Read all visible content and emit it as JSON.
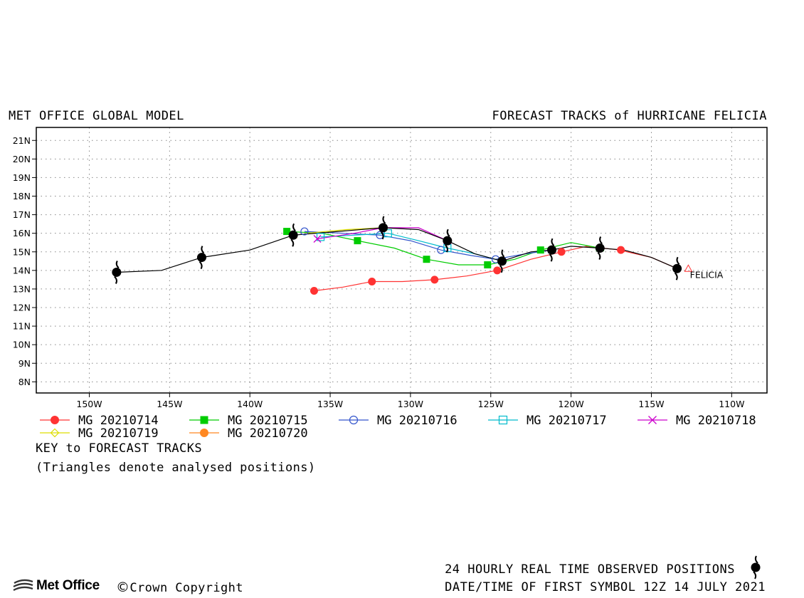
{
  "header": {
    "left": "MET OFFICE GLOBAL MODEL",
    "right": "FORECAST TRACKS of HURRICANE FELICIA"
  },
  "key": {
    "title": "KEY to FORECAST TRACKS",
    "note": "(Triangles denote analysed positions)"
  },
  "footer": {
    "observed": "24 HOURLY REAL TIME OBSERVED POSITIONS",
    "datetime": "DATE/TIME OF FIRST SYMBOL 12Z 14 JULY 2021",
    "logo": "Met Office",
    "copyright_symbol": "©",
    "copyright": "Crown Copyright"
  },
  "chart_data": {
    "type": "scatter",
    "title": "FORECAST TRACKS of HURRICANE FELICIA",
    "xlabel": "",
    "ylabel": "",
    "xlim": [
      -153.3,
      -107.8
    ],
    "ylim": [
      7.4,
      21.7
    ],
    "x_ticks": [
      -150,
      -145,
      -140,
      -135,
      -130,
      -125,
      -120,
      -115,
      -110
    ],
    "x_tick_labels": [
      "150W",
      "145W",
      "140W",
      "135W",
      "130W",
      "125W",
      "120W",
      "115W",
      "110W"
    ],
    "y_ticks": [
      8,
      9,
      10,
      11,
      12,
      13,
      14,
      15,
      16,
      17,
      18,
      19,
      20,
      21
    ],
    "y_tick_labels": [
      "8N",
      "9N",
      "10N",
      "11N",
      "12N",
      "13N",
      "14N",
      "15N",
      "16N",
      "17N",
      "18N",
      "19N",
      "20N",
      "21N"
    ],
    "grid": true,
    "storm_label": "FELICIA",
    "observed": {
      "color": "#000000",
      "points": [
        [
          -113.4,
          14.1
        ],
        [
          -118.2,
          15.2
        ],
        [
          -121.2,
          15.1
        ],
        [
          -124.3,
          14.5
        ],
        [
          -127.7,
          15.6
        ],
        [
          -131.7,
          16.3
        ],
        [
          -137.3,
          15.9
        ],
        [
          -143.0,
          14.7
        ],
        [
          -148.3,
          13.9
        ]
      ],
      "extra_line": [
        [
          -113.4,
          14.1
        ],
        [
          -115.0,
          14.7
        ],
        [
          -116.7,
          15.1
        ],
        [
          -118.2,
          15.2
        ],
        [
          -120.0,
          15.3
        ],
        [
          -121.2,
          15.1
        ],
        [
          -122.5,
          15.0
        ],
        [
          -124.3,
          14.5
        ],
        [
          -126.0,
          14.9
        ],
        [
          -127.7,
          15.6
        ],
        [
          -129.5,
          16.2
        ],
        [
          -131.7,
          16.3
        ],
        [
          -134.5,
          16.1
        ],
        [
          -137.3,
          15.9
        ],
        [
          -140.0,
          15.1
        ],
        [
          -143.0,
          14.7
        ],
        [
          -145.5,
          14.0
        ],
        [
          -148.3,
          13.9
        ]
      ]
    },
    "series": [
      {
        "name": "MG 20210714",
        "color": "#ff3333",
        "marker": "circle-filled",
        "analysed": [
          -112.7,
          14.1
        ],
        "track": [
          [
            -113.4,
            14.1
          ],
          [
            -115.0,
            14.7
          ],
          [
            -117.0,
            15.1
          ],
          [
            -119.0,
            15.3
          ],
          [
            -120.6,
            15.0
          ],
          [
            -122.5,
            14.6
          ],
          [
            -124.6,
            14.0
          ],
          [
            -126.5,
            13.7
          ],
          [
            -128.5,
            13.5
          ],
          [
            -130.5,
            13.4
          ],
          [
            -132.4,
            13.4
          ],
          [
            -134.2,
            13.1
          ],
          [
            -136.0,
            12.9
          ]
        ],
        "markers": [
          [
            -116.9,
            15.1
          ],
          [
            -120.6,
            15.0
          ],
          [
            -124.6,
            14.0
          ],
          [
            -128.5,
            13.5
          ],
          [
            -132.4,
            13.4
          ],
          [
            -136.0,
            12.9
          ]
        ]
      },
      {
        "name": "MG 20210715",
        "color": "#00cc00",
        "marker": "square-filled",
        "analysed": [
          -118.2,
          15.2
        ],
        "track": [
          [
            -118.2,
            15.2
          ],
          [
            -120.0,
            15.5
          ],
          [
            -121.9,
            15.1
          ],
          [
            -123.5,
            14.6
          ],
          [
            -125.2,
            14.3
          ],
          [
            -127.0,
            14.3
          ],
          [
            -129.0,
            14.6
          ],
          [
            -131.0,
            15.2
          ],
          [
            -133.3,
            15.6
          ],
          [
            -135.5,
            16.0
          ],
          [
            -137.7,
            16.1
          ]
        ],
        "markers": [
          [
            -121.9,
            15.1
          ],
          [
            -125.2,
            14.3
          ],
          [
            -129.0,
            14.6
          ],
          [
            -133.3,
            15.6
          ],
          [
            -137.7,
            16.1
          ]
        ]
      },
      {
        "name": "MG 20210716",
        "color": "#3355cc",
        "marker": "circle-open",
        "analysed": [
          -121.2,
          15.1
        ],
        "track": [
          [
            -121.2,
            15.1
          ],
          [
            -122.8,
            14.9
          ],
          [
            -124.7,
            14.6
          ],
          [
            -126.2,
            14.8
          ],
          [
            -128.1,
            15.1
          ],
          [
            -130.0,
            15.6
          ],
          [
            -131.9,
            15.9
          ],
          [
            -134.2,
            16.0
          ],
          [
            -136.6,
            16.1
          ]
        ],
        "markers": [
          [
            -124.7,
            14.6
          ],
          [
            -128.1,
            15.1
          ],
          [
            -131.9,
            15.9
          ],
          [
            -136.6,
            16.1
          ]
        ]
      },
      {
        "name": "MG 20210717",
        "color": "#00bbcc",
        "marker": "square-open",
        "analysed": [
          -124.3,
          14.5
        ],
        "track": [
          [
            -124.3,
            14.5
          ],
          [
            -126.0,
            14.9
          ],
          [
            -127.7,
            15.2
          ],
          [
            -129.5,
            15.6
          ],
          [
            -131.4,
            16.0
          ],
          [
            -133.5,
            15.9
          ],
          [
            -135.6,
            15.8
          ]
        ],
        "markers": [
          [
            -127.7,
            15.2
          ],
          [
            -131.4,
            16.0
          ],
          [
            -135.6,
            15.8
          ]
        ]
      },
      {
        "name": "MG 20210718",
        "color": "#cc00cc",
        "marker": "x",
        "analysed": [
          -127.7,
          15.6
        ],
        "track": [
          [
            -127.7,
            15.6
          ],
          [
            -129.5,
            16.3
          ],
          [
            -131.7,
            16.3
          ],
          [
            -133.5,
            16.0
          ],
          [
            -135.8,
            15.7
          ]
        ],
        "markers": [
          [
            -135.8,
            15.7
          ]
        ]
      },
      {
        "name": "MG 20210719",
        "color": "#dddd00",
        "marker": "diamond-open",
        "analysed": [
          -131.7,
          16.3
        ],
        "track": [
          [
            -131.7,
            16.3
          ],
          [
            -134.0,
            16.2
          ],
          [
            -136.5,
            16.0
          ]
        ],
        "markers": []
      },
      {
        "name": "MG 20210720",
        "color": "#ff8822",
        "marker": "circle-filled",
        "analysed": [
          -137.3,
          15.9
        ],
        "track": [],
        "markers": []
      }
    ]
  }
}
